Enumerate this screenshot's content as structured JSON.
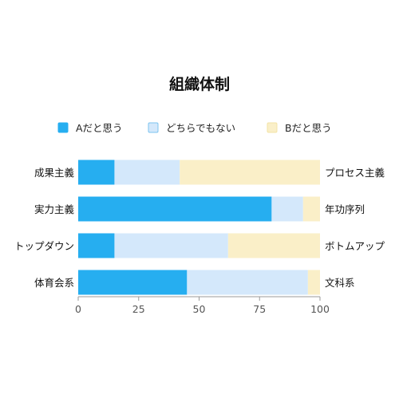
{
  "chart_data": {
    "type": "bar",
    "orientation": "horizontal",
    "stacked": true,
    "title": "組織体制",
    "xlim": [
      0,
      100
    ],
    "xticks": [
      0,
      25,
      50,
      75,
      100
    ],
    "grid": false,
    "legend_position": "top",
    "categories_left": [
      "成果主義",
      "実力主義",
      "トップダウン",
      "体育会系"
    ],
    "categories_right": [
      "プロセス主義",
      "年功序列",
      "ボトムアップ",
      "文科系"
    ],
    "series": [
      {
        "name": "Aだと思う",
        "color": "#26aef0",
        "values": [
          15,
          80,
          15,
          45
        ]
      },
      {
        "name": "どちらでもない",
        "color": "#d4e8fb",
        "values": [
          27,
          13,
          47,
          50
        ]
      },
      {
        "name": "Bだと思う",
        "color": "#faefc8",
        "values": [
          58,
          7,
          38,
          5
        ]
      }
    ],
    "legend_border_colors": [
      "#26aef0",
      "#7cc3ef",
      "#f3e3a6"
    ]
  }
}
